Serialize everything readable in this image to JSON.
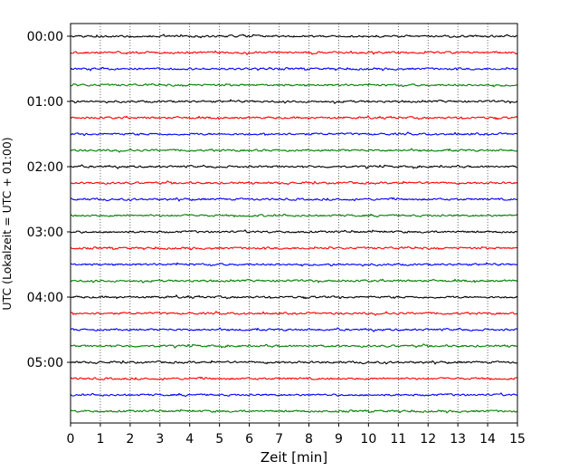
{
  "chart_data": {
    "type": "line",
    "title": "",
    "xlabel": "Zeit  [min]",
    "ylabel": "UTC (Lokalzeit = UTC + 01:00)",
    "xlim": [
      0,
      15
    ],
    "x_ticks": [
      0,
      1,
      2,
      3,
      4,
      5,
      6,
      7,
      8,
      9,
      10,
      11,
      12,
      13,
      14,
      15
    ],
    "grid": "vertical-dotted",
    "legend": "none",
    "y_tick_labels": [
      "00:00",
      "01:00",
      "02:00",
      "03:00",
      "04:00",
      "05:00"
    ],
    "trace_interval_min": 15,
    "trace_colors": [
      "#000000",
      "#ff0000",
      "#0000ff",
      "#008000"
    ],
    "traces": [
      {
        "start": "00:00",
        "color": "#000000"
      },
      {
        "start": "00:15",
        "color": "#ff0000"
      },
      {
        "start": "00:30",
        "color": "#0000ff"
      },
      {
        "start": "00:45",
        "color": "#008000"
      },
      {
        "start": "01:00",
        "color": "#000000"
      },
      {
        "start": "01:15",
        "color": "#ff0000"
      },
      {
        "start": "01:30",
        "color": "#0000ff"
      },
      {
        "start": "01:45",
        "color": "#008000"
      },
      {
        "start": "02:00",
        "color": "#000000"
      },
      {
        "start": "02:15",
        "color": "#ff0000"
      },
      {
        "start": "02:30",
        "color": "#0000ff"
      },
      {
        "start": "02:45",
        "color": "#008000"
      },
      {
        "start": "03:00",
        "color": "#000000"
      },
      {
        "start": "03:15",
        "color": "#ff0000"
      },
      {
        "start": "03:30",
        "color": "#0000ff"
      },
      {
        "start": "03:45",
        "color": "#008000"
      },
      {
        "start": "04:00",
        "color": "#000000"
      },
      {
        "start": "04:15",
        "color": "#ff0000"
      },
      {
        "start": "04:30",
        "color": "#0000ff"
      },
      {
        "start": "04:45",
        "color": "#008000"
      },
      {
        "start": "05:00",
        "color": "#000000"
      },
      {
        "start": "05:15",
        "color": "#ff0000"
      },
      {
        "start": "05:30",
        "color": "#0000ff"
      },
      {
        "start": "05:45",
        "color": "#008000"
      }
    ]
  }
}
